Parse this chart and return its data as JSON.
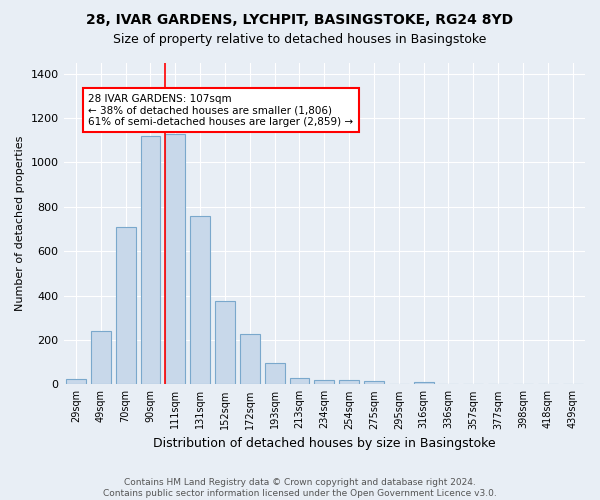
{
  "title": "28, IVAR GARDENS, LYCHPIT, BASINGSTOKE, RG24 8YD",
  "subtitle": "Size of property relative to detached houses in Basingstoke",
  "xlabel": "Distribution of detached houses by size in Basingstoke",
  "ylabel": "Number of detached properties",
  "bar_color": "#c8d8ea",
  "bar_edge_color": "#7aa8cc",
  "background_color": "#e8eef5",
  "grid_color": "#ffffff",
  "categories": [
    "29sqm",
    "49sqm",
    "70sqm",
    "90sqm",
    "111sqm",
    "131sqm",
    "152sqm",
    "172sqm",
    "193sqm",
    "213sqm",
    "234sqm",
    "254sqm",
    "275sqm",
    "295sqm",
    "316sqm",
    "336sqm",
    "357sqm",
    "377sqm",
    "398sqm",
    "418sqm",
    "439sqm"
  ],
  "values": [
    25,
    240,
    710,
    1120,
    1130,
    760,
    375,
    225,
    95,
    28,
    20,
    20,
    15,
    0,
    12,
    0,
    0,
    0,
    0,
    0,
    0
  ],
  "annotation_text": "28 IVAR GARDENS: 107sqm\n← 38% of detached houses are smaller (1,806)\n61% of semi-detached houses are larger (2,859) →",
  "annotation_box_color": "white",
  "annotation_box_edge_color": "red",
  "red_line_bin_index": 4,
  "ylim": [
    0,
    1450
  ],
  "yticks": [
    0,
    200,
    400,
    600,
    800,
    1000,
    1200,
    1400
  ],
  "footer": "Contains HM Land Registry data © Crown copyright and database right 2024.\nContains public sector information licensed under the Open Government Licence v3.0."
}
